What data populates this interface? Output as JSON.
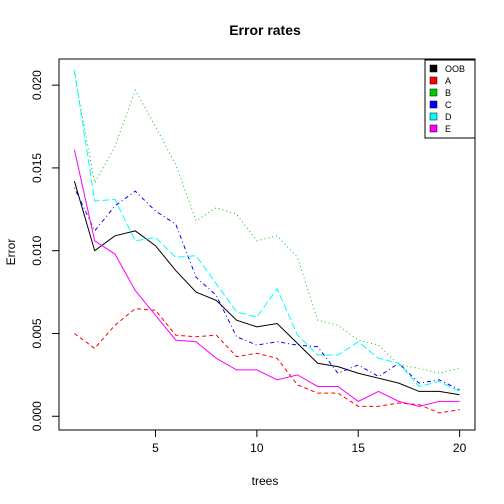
{
  "chart_data": {
    "type": "line",
    "title": "Error rates",
    "xlabel": "trees",
    "ylabel": "Error",
    "xlim": [
      0.24,
      20.76
    ],
    "ylim": [
      -0.00083,
      0.02158
    ],
    "xticks": [
      5,
      10,
      15,
      20
    ],
    "yticks": [
      0.0,
      0.005,
      0.01,
      0.015,
      0.02
    ],
    "ytick_labels": [
      "0.000",
      "0.005",
      "0.010",
      "0.015",
      "0.020"
    ],
    "grid": false,
    "legend_position": "top-right",
    "x": [
      1,
      2,
      3,
      4,
      5,
      6,
      7,
      8,
      9,
      10,
      11,
      12,
      13,
      14,
      15,
      16,
      17,
      18,
      19,
      20
    ],
    "series": [
      {
        "name": "OOB",
        "color": "#000000",
        "dash": "solid",
        "values": [
          0.0142,
          0.01,
          0.0109,
          0.0112,
          0.0103,
          0.0088,
          0.0075,
          0.007,
          0.0058,
          0.0054,
          0.0056,
          0.0044,
          0.0032,
          0.003,
          0.0026,
          0.0023,
          0.002,
          0.0015,
          0.0015,
          0.0013
        ]
      },
      {
        "name": "A",
        "color": "#ff0000",
        "dash": "dashed",
        "values": [
          0.005,
          0.0041,
          0.0055,
          0.0065,
          0.0064,
          0.0049,
          0.0048,
          0.0049,
          0.0036,
          0.0038,
          0.0035,
          0.0019,
          0.0014,
          0.0014,
          0.0006,
          0.0006,
          0.0008,
          0.0007,
          0.0002,
          0.0004
        ]
      },
      {
        "name": "B",
        "color": "#00cc00",
        "dash": "dotted",
        "values": [
          0.0207,
          0.0141,
          0.0163,
          0.0197,
          0.0175,
          0.0152,
          0.0118,
          0.0126,
          0.0122,
          0.0106,
          0.0109,
          0.0096,
          0.0058,
          0.0055,
          0.0046,
          0.0043,
          0.0031,
          0.0029,
          0.0026,
          0.0029
        ]
      },
      {
        "name": "C",
        "color": "#0000ff",
        "dash": "dotdash",
        "values": [
          0.0138,
          0.0112,
          0.0127,
          0.0136,
          0.0124,
          0.0116,
          0.0084,
          0.0073,
          0.0048,
          0.0043,
          0.0045,
          0.0043,
          0.0042,
          0.0026,
          0.0031,
          0.0024,
          0.0032,
          0.002,
          0.0022,
          0.0016
        ]
      },
      {
        "name": "D",
        "color": "#00ffff",
        "dash": "longdash",
        "values": [
          0.0209,
          0.013,
          0.0131,
          0.0106,
          0.0108,
          0.0096,
          0.0097,
          0.008,
          0.0063,
          0.006,
          0.0077,
          0.0049,
          0.0037,
          0.0037,
          0.0045,
          0.0035,
          0.0032,
          0.0018,
          0.0021,
          0.0015
        ]
      },
      {
        "name": "E",
        "color": "#ff00ff",
        "dash": "solid",
        "values": [
          0.0161,
          0.0106,
          0.0098,
          0.0076,
          0.0061,
          0.0046,
          0.0045,
          0.0035,
          0.0028,
          0.0028,
          0.0022,
          0.0025,
          0.0018,
          0.0018,
          0.0009,
          0.0015,
          0.0009,
          0.0006,
          0.0009,
          0.0009
        ]
      }
    ]
  }
}
